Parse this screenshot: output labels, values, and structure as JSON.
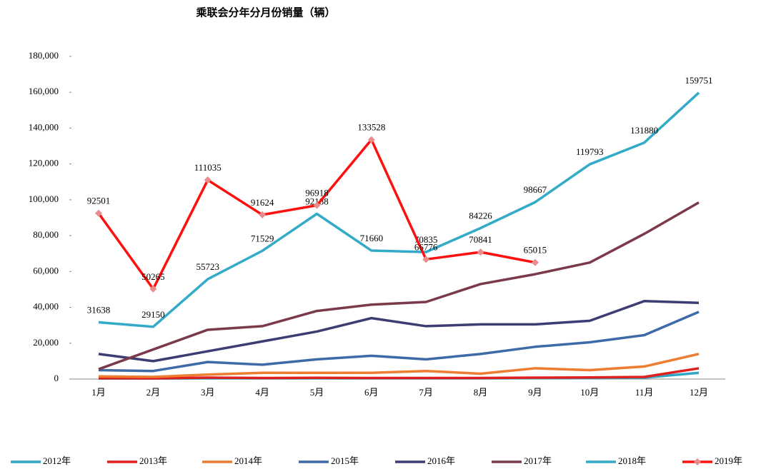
{
  "chart_data": {
    "type": "line",
    "title": "乘联会分年分月份销量（辆）",
    "categories": [
      "1月",
      "2月",
      "3月",
      "4月",
      "5月",
      "6月",
      "7月",
      "8月",
      "9月",
      "10月",
      "11月",
      "12月"
    ],
    "ylim": [
      0,
      180000
    ],
    "yticks": [
      0,
      {
        "value": 20000,
        "label": "20,000"
      },
      {
        "value": 40000,
        "label": "40,000"
      },
      {
        "value": 60000,
        "label": "60,000"
      },
      {
        "value": 80000,
        "label": "80,000"
      },
      {
        "value": 100000,
        "label": "100,000"
      },
      {
        "value": 120000,
        "label": "120,000"
      },
      {
        "value": 140000,
        "label": "140,000"
      },
      {
        "value": 160000,
        "label": "160,000"
      },
      {
        "value": 180000,
        "label": "180,000"
      }
    ],
    "grid": false,
    "legend": "bottom",
    "series": [
      {
        "name": "2012年",
        "color": "#2ea6c4",
        "values": [
          300,
          300,
          400,
          400,
          400,
          400,
          400,
          400,
          500,
          600,
          800,
          3500
        ]
      },
      {
        "name": "2013年",
        "color": "#e0201e",
        "values": [
          500,
          400,
          800,
          600,
          700,
          600,
          600,
          600,
          800,
          900,
          1200,
          6000
        ]
      },
      {
        "name": "2014年",
        "color": "#ed7d31",
        "values": [
          1500,
          1200,
          2500,
          3500,
          3500,
          3500,
          4500,
          3000,
          6000,
          5000,
          7000,
          14000
        ]
      },
      {
        "name": "2015年",
        "color": "#3f6aa8",
        "values": [
          5000,
          4500,
          9500,
          8000,
          11000,
          13000,
          11000,
          14000,
          18000,
          20500,
          24500,
          37500
        ]
      },
      {
        "name": "2016年",
        "color": "#3d3d74",
        "values": [
          14000,
          10000,
          15500,
          21000,
          26500,
          34000,
          29500,
          30500,
          30500,
          32500,
          43500,
          42500
        ]
      },
      {
        "name": "2017年",
        "color": "#7b3a4a",
        "values": [
          5500,
          16500,
          27500,
          29500,
          38000,
          41500,
          43000,
          53000,
          58500,
          65000,
          81000,
          98500
        ]
      },
      {
        "name": "2018年",
        "color": "#33abc8",
        "values": [
          31638,
          29150,
          55723,
          71529,
          92188,
          71660,
          70835,
          84226,
          98667,
          119793,
          131880,
          159751
        ],
        "labels": true
      },
      {
        "name": "2019年",
        "color": "#ff1010",
        "marker": "diamond",
        "marker_color": "#e88c8c",
        "values": [
          92501,
          50265,
          111035,
          91624,
          96918,
          133528,
          66776,
          70841,
          65015,
          null,
          null,
          null
        ],
        "labels": true
      }
    ]
  }
}
